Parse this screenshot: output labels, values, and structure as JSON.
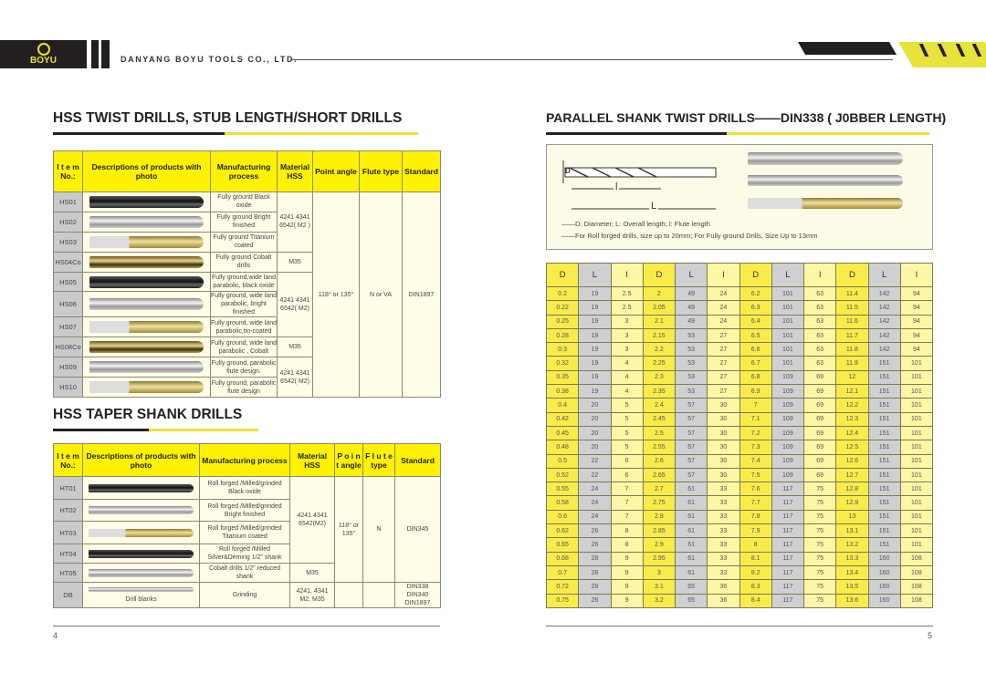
{
  "header": {
    "company": "DANYANG BOYU TOOLS CO., LTD.",
    "logo_text": "BOYU",
    "colors": {
      "brand_yellow": "#e7e33a",
      "dark": "#231f20"
    }
  },
  "left": {
    "title1": "HSS TWIST DRILLS, STUB LENGTH/SHORT DRILLS",
    "table1": {
      "headers": [
        "I t e m No.:",
        "Descriptions of products with photo",
        "Manufacturing process",
        "Material HSS",
        "Point angle",
        "Flute type",
        "Standard"
      ],
      "rows": [
        {
          "item": "HS01",
          "photo": "black",
          "process": "Fully ground Black oxide"
        },
        {
          "item": "HS02",
          "photo": "bright",
          "process": "Fully ground Bright finished"
        },
        {
          "item": "HS03",
          "photo": "gold",
          "process": "Fully ground Titanium coated"
        },
        {
          "item": "HS04Co",
          "photo": "cobalt",
          "process": "Fully ground Cobalt drills"
        },
        {
          "item": "HS05",
          "photo": "black",
          "process": "Fully ground,wide land parabolic, black oxide"
        },
        {
          "item": "HS06",
          "photo": "bright",
          "process": "Fully ground, wide land parabolic, bright finished"
        },
        {
          "item": "HS07",
          "photo": "gold",
          "process": "Fully ground, wide land parabolic,tin-coated"
        },
        {
          "item": "HS08Co",
          "photo": "cobalt",
          "process": "Fully ground, wide land parabolic , Cobalt"
        },
        {
          "item": "HS09",
          "photo": "bright",
          "process": "Fully ground, parabolic flute design."
        },
        {
          "item": "HS10",
          "photo": "gold",
          "process": "Fully ground, parabolic flute design"
        }
      ],
      "material_a": "4241 4341 6542( M2 )",
      "material_b": "M35",
      "material_c": "4241 4341 6542( M2)",
      "material_d": "M35",
      "material_e": "4241 4341 6542( M2)",
      "point_angle": "118° or 135°",
      "flute_type": "N or VA",
      "standard": "DIN1897"
    },
    "title2": "HSS TAPER SHANK DRILLS",
    "table2": {
      "headers": [
        "I t e m No.:",
        "Descriptions of products with photo",
        "Manufacturing process",
        "Material HSS",
        "P o i n t angle",
        "F l u t e type",
        "Standard"
      ],
      "rows": [
        {
          "item": "HT01",
          "photo": "black",
          "process": "Roll forged /Milled/grinded Black oxide"
        },
        {
          "item": "HT02",
          "photo": "bright",
          "process": "Roll forged /Milled/grinded Bright finished"
        },
        {
          "item": "HT03",
          "photo": "gold",
          "process": "Roll forged /Milled/grinded Titanium coated"
        },
        {
          "item": "HT04",
          "photo": "black",
          "process": "Roll forged /Milled Silver&Deming 1/2\" shank"
        },
        {
          "item": "HT05",
          "photo": "bright",
          "process": "Cobalt drills 1/2\" reduced shank"
        }
      ],
      "material_a": "4241 4341 6542(M2)",
      "material_b": "M35",
      "point_angle": "118° or 135°",
      "flute_type": "N",
      "standard": "DIN345",
      "db": {
        "item": "DB",
        "desc": "Drill blanks",
        "process": "Grinding",
        "material": "4241, 4341 M2, M35",
        "standard": "DIN338 DIN340 DIN1897"
      }
    },
    "page_number": "4"
  },
  "right": {
    "title": "PARALLEL SHANK TWIST DRILLS——DIN338 ( J0BBER LENGTH)",
    "diagram": {
      "label_D": "D",
      "label_l": "l",
      "label_L": "L",
      "note1": "——D: Diameter; L: Overall length; l: Flute length",
      "note2": "——For Roll forged drills, size up to 20mm; For Fully ground Drills, Size Up to 13mm"
    },
    "table": {
      "headers": [
        "D",
        "L",
        "l",
        "D",
        "L",
        "l",
        "D",
        "L",
        "l",
        "D",
        "L",
        "l"
      ],
      "rows": [
        [
          "0.2",
          "19",
          "2.5",
          "2",
          "49",
          "24",
          "6.2",
          "101",
          "63",
          "11.4",
          "142",
          "94"
        ],
        [
          "0.22",
          "19",
          "2.5",
          "2.05",
          "49",
          "24",
          "6.3",
          "101",
          "63",
          "11.5",
          "142",
          "94"
        ],
        [
          "0.25",
          "19",
          "3",
          "2.1",
          "49",
          "24",
          "6.4",
          "101",
          "63",
          "11.6",
          "142",
          "94"
        ],
        [
          "0.28",
          "19",
          "3",
          "2.15",
          "53",
          "27",
          "6.5",
          "101",
          "63",
          "11.7",
          "142",
          "94"
        ],
        [
          "0.3",
          "19",
          "3",
          "2.2",
          "53",
          "27",
          "6.6",
          "101",
          "63",
          "11.8",
          "142",
          "94"
        ],
        [
          "0.32",
          "19",
          "4",
          "2.25",
          "53",
          "27",
          "6.7",
          "101",
          "63",
          "11.9",
          "151",
          "101"
        ],
        [
          "0.35",
          "19",
          "4",
          "2.3",
          "53",
          "27",
          "6.8",
          "109",
          "69",
          "12",
          "151",
          "101"
        ],
        [
          "0.38",
          "19",
          "4",
          "2.35",
          "53",
          "27",
          "6.9",
          "109",
          "69",
          "12.1",
          "151",
          "101"
        ],
        [
          "0.4",
          "20",
          "5",
          "2.4",
          "57",
          "30",
          "7",
          "109",
          "69",
          "12.2",
          "151",
          "101"
        ],
        [
          "0.42",
          "20",
          "5",
          "2.45",
          "57",
          "30",
          "7.1",
          "109",
          "69",
          "12.3",
          "151",
          "101"
        ],
        [
          "0.45",
          "20",
          "5",
          "2.5",
          "57",
          "30",
          "7.2",
          "109",
          "69",
          "12.4",
          "151",
          "101"
        ],
        [
          "0.48",
          "20",
          "5",
          "2.55",
          "57",
          "30",
          "7.3",
          "109",
          "69",
          "12.5",
          "151",
          "101"
        ],
        [
          "0.5",
          "22",
          "6",
          "2.6",
          "57",
          "30",
          "7.4",
          "109",
          "69",
          "12.6",
          "151",
          "101"
        ],
        [
          "0.52",
          "22",
          "6",
          "2.65",
          "57",
          "30",
          "7.5",
          "109",
          "69",
          "12.7",
          "151",
          "101"
        ],
        [
          "0.55",
          "24",
          "7",
          "2.7",
          "61",
          "33",
          "7.6",
          "117",
          "75",
          "12.8",
          "151",
          "101"
        ],
        [
          "0.58",
          "24",
          "7",
          "2.75",
          "61",
          "33",
          "7.7",
          "117",
          "75",
          "12.9",
          "151",
          "101"
        ],
        [
          "0.6",
          "24",
          "7",
          "2.8",
          "61",
          "33",
          "7.8",
          "117",
          "75",
          "13",
          "151",
          "101"
        ],
        [
          "0.62",
          "26",
          "8",
          "2.85",
          "61",
          "33",
          "7.9",
          "117",
          "75",
          "13.1",
          "151",
          "101"
        ],
        [
          "0.65",
          "26",
          "8",
          "2.9",
          "61",
          "33",
          "8",
          "117",
          "75",
          "13.2",
          "151",
          "101"
        ],
        [
          "0.68",
          "28",
          "9",
          "2.95",
          "61",
          "33",
          "8.1",
          "117",
          "75",
          "13.3",
          "160",
          "108"
        ],
        [
          "0.7",
          "28",
          "9",
          "3",
          "61",
          "33",
          "8.2",
          "117",
          "75",
          "13.4",
          "160",
          "108"
        ],
        [
          "0.72",
          "28",
          "9",
          "3.1",
          "65",
          "36",
          "8.3",
          "117",
          "75",
          "13.5",
          "160",
          "108"
        ],
        [
          "0.75",
          "28",
          "9",
          "3.2",
          "65",
          "36",
          "8.4",
          "117",
          "75",
          "13.6",
          "160",
          "108"
        ]
      ]
    },
    "page_number": "5"
  }
}
